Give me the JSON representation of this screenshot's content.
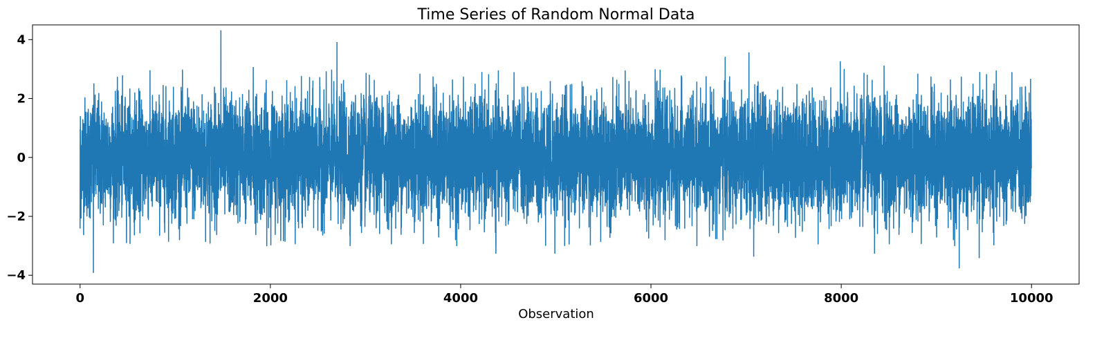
{
  "chart_data": {
    "type": "line",
    "title": "Time Series of Random Normal Data",
    "xlabel": "Observation",
    "ylabel": "",
    "xlim": [
      -500,
      10500
    ],
    "ylim": [
      -4.3,
      4.5
    ],
    "x_ticks": [
      0,
      2000,
      4000,
      6000,
      8000,
      10000
    ],
    "x_tick_labels": [
      "0",
      "2000",
      "4000",
      "6000",
      "8000",
      "10000"
    ],
    "y_ticks": [
      4,
      2,
      0,
      -2,
      -4
    ],
    "y_tick_labels": [
      "4",
      "2",
      "0",
      "−2",
      "−4"
    ],
    "grid": false,
    "legend": "none",
    "series_color": "#1f77b4",
    "n_points": 10000,
    "series": [
      {
        "description": "random normal draws, mean 0, std 1",
        "key_values": [
          {
            "x": 0,
            "y": -2.4
          },
          {
            "x": 140,
            "y": -3.9
          },
          {
            "x": 1480,
            "y": 4.3
          },
          {
            "x": 1820,
            "y": 3.05
          },
          {
            "x": 2700,
            "y": 3.9
          },
          {
            "x": 4370,
            "y": -3.25
          },
          {
            "x": 4990,
            "y": -3.25
          },
          {
            "x": 6780,
            "y": 3.4
          },
          {
            "x": 7030,
            "y": 3.55
          },
          {
            "x": 7080,
            "y": -3.35
          },
          {
            "x": 7990,
            "y": 3.25
          },
          {
            "x": 8350,
            "y": -3.25
          },
          {
            "x": 8450,
            "y": 3.1
          },
          {
            "x": 9240,
            "y": -3.75
          },
          {
            "x": 9450,
            "y": -3.4
          },
          {
            "x": 9990,
            "y": 2.65
          }
        ]
      }
    ]
  }
}
